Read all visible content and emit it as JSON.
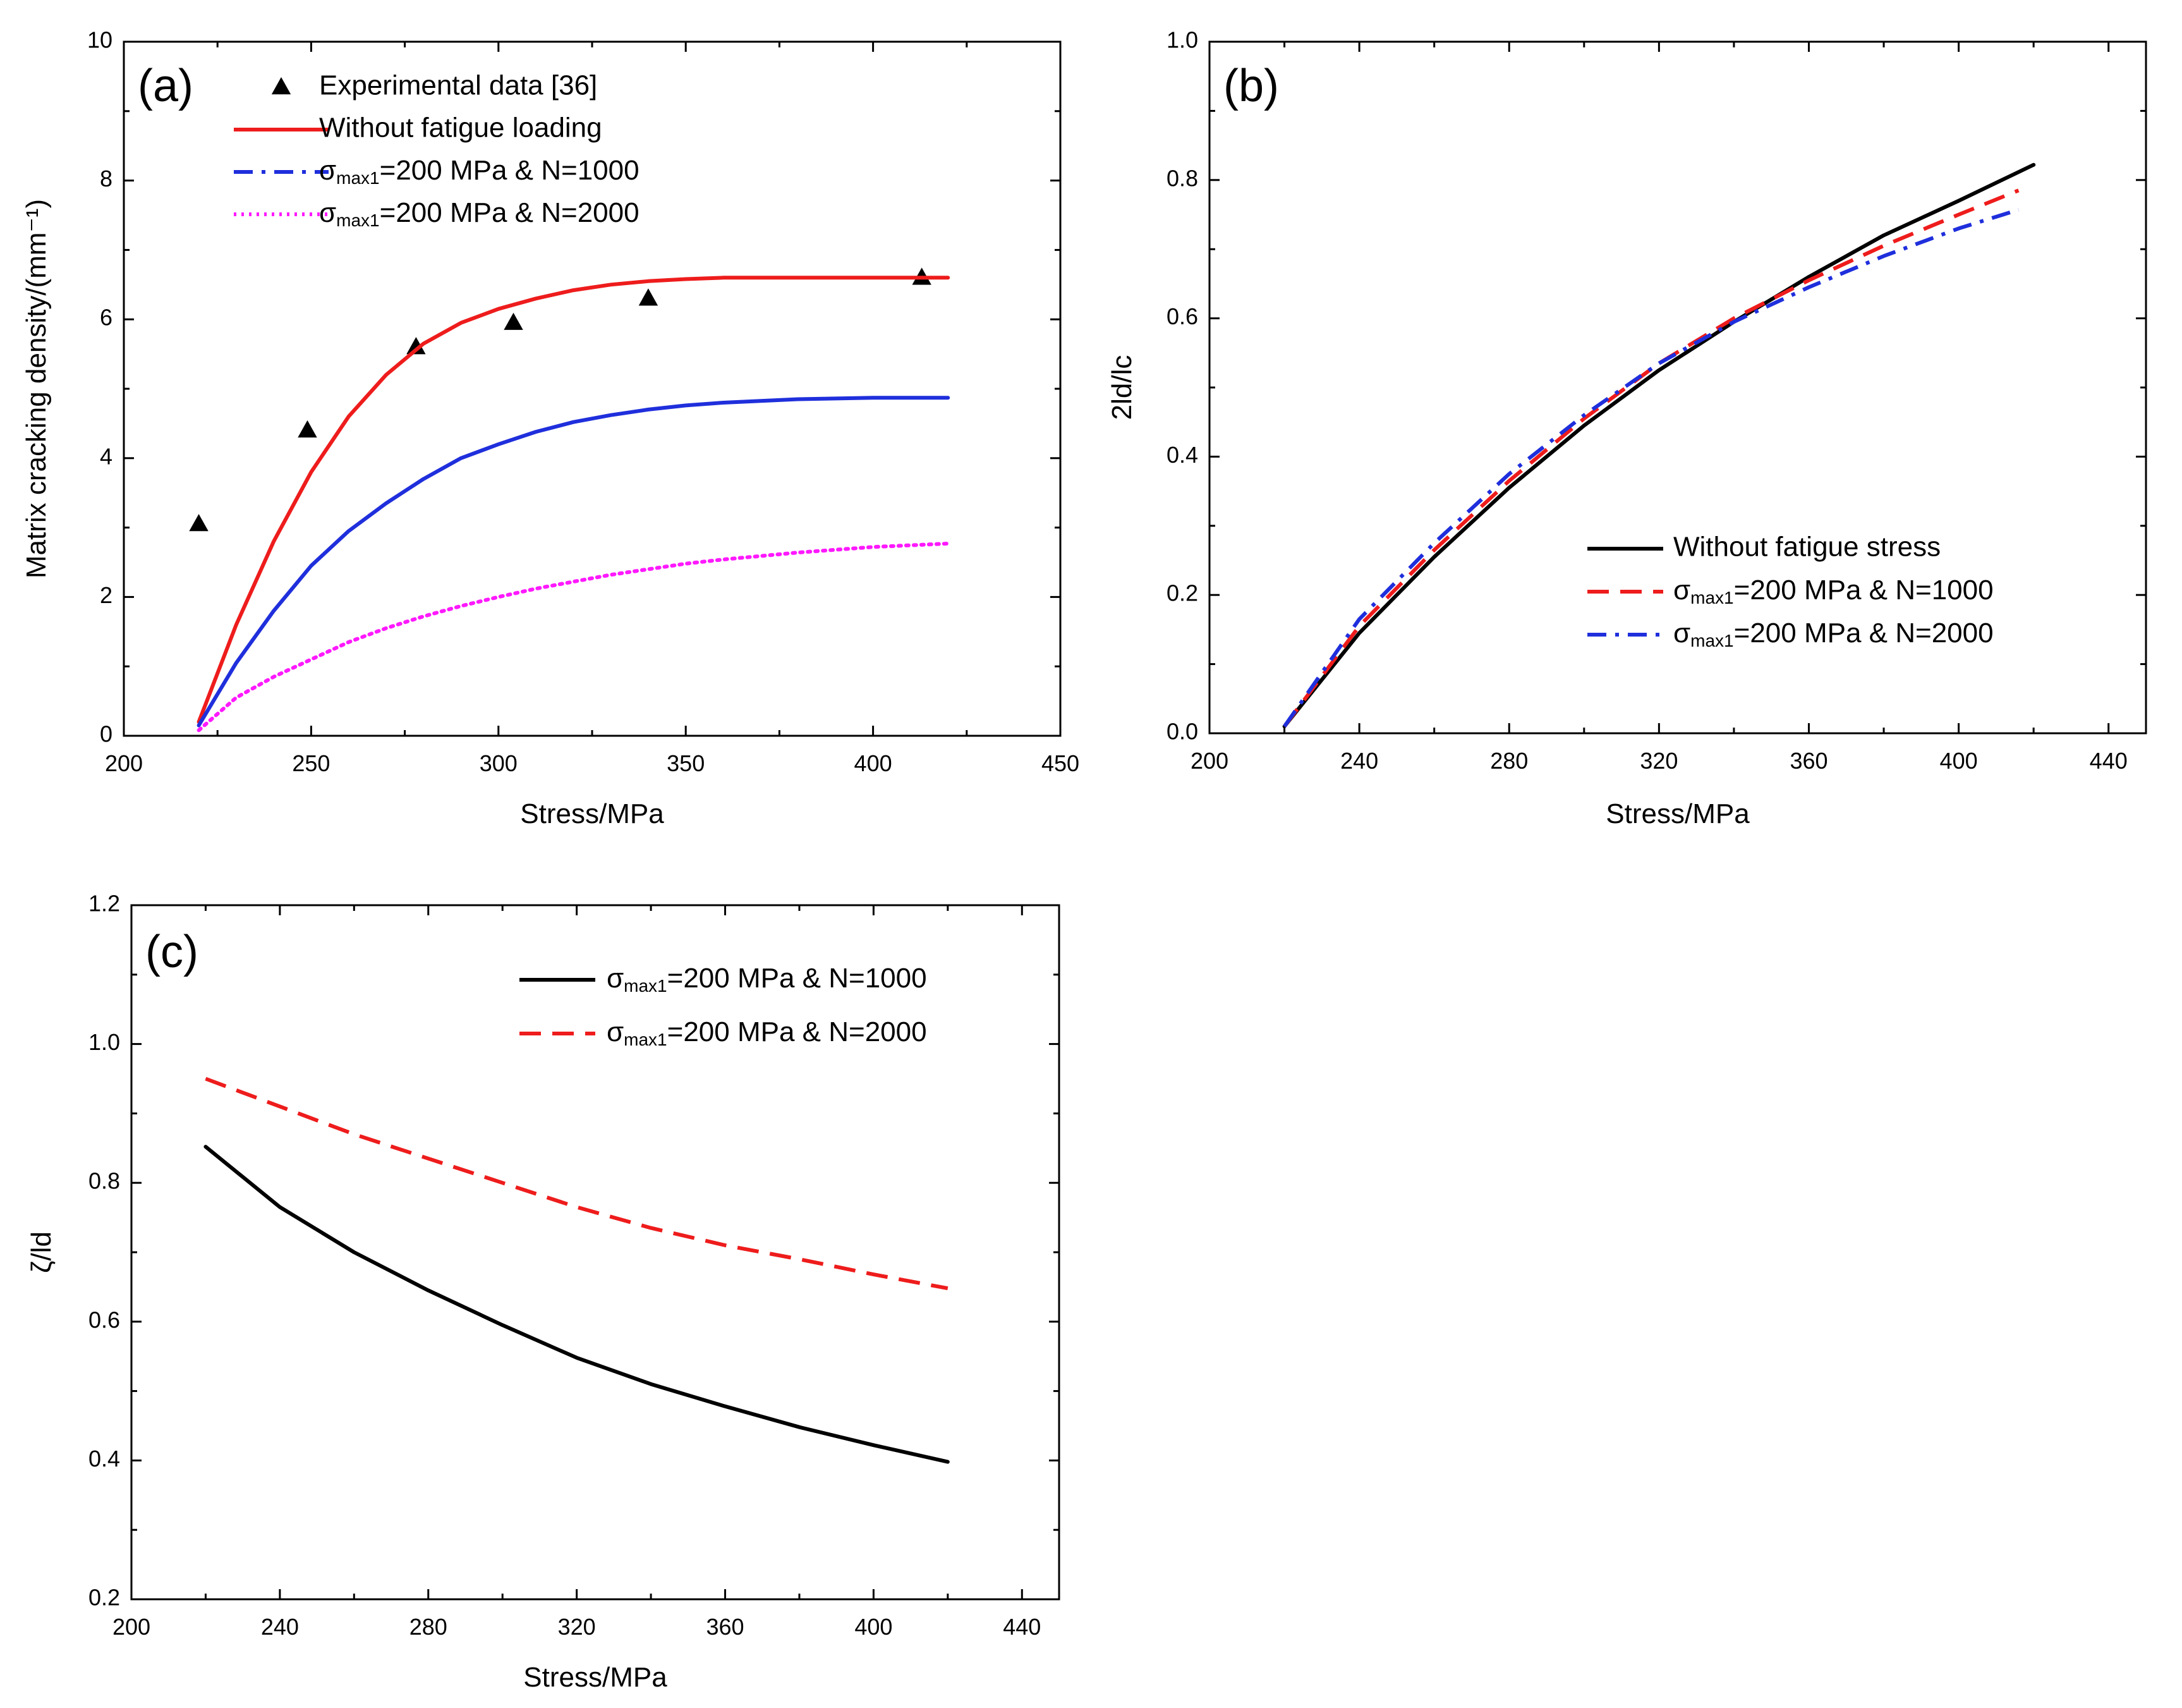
{
  "chart_data": [
    {
      "type": "line",
      "panel_label": "(a)",
      "xlabel": "Stress/MPa",
      "ylabel": "Matrix cracking density/(mm⁻¹)",
      "xlim": [
        200,
        450
      ],
      "ylim": [
        0,
        10
      ],
      "xticks": [
        200,
        250,
        300,
        350,
        400,
        450
      ],
      "yticks": [
        0,
        2,
        4,
        6,
        8,
        10
      ],
      "grid": false,
      "legend_position": "top-left",
      "series": [
        {
          "name": "Experimental data [36]",
          "style": "scatter",
          "marker": "triangle",
          "color": "#000000",
          "x": [
            220,
            249,
            278,
            304,
            340,
            413
          ],
          "y": [
            3.05,
            4.4,
            5.6,
            5.95,
            6.3,
            6.6
          ]
        },
        {
          "name": "Without fatigue loading",
          "style": "solid",
          "color": "#ee1c1c",
          "x": [
            220,
            230,
            240,
            250,
            260,
            270,
            280,
            290,
            300,
            310,
            320,
            330,
            340,
            350,
            360,
            380,
            400,
            420
          ],
          "y": [
            0.2,
            1.6,
            2.8,
            3.8,
            4.6,
            5.2,
            5.65,
            5.95,
            6.15,
            6.3,
            6.42,
            6.5,
            6.55,
            6.58,
            6.6,
            6.6,
            6.6,
            6.6
          ]
        },
        {
          "name": "=200 MPa & N=1000",
          "name_prefix": "σ",
          "name_sub": "max1",
          "style": "solid",
          "legend_style": "dashdot",
          "color": "#1f2fdc",
          "x": [
            220,
            230,
            240,
            250,
            260,
            270,
            280,
            290,
            300,
            310,
            320,
            330,
            340,
            350,
            360,
            380,
            400,
            420
          ],
          "y": [
            0.15,
            1.05,
            1.8,
            2.45,
            2.95,
            3.35,
            3.7,
            4.0,
            4.2,
            4.38,
            4.52,
            4.62,
            4.7,
            4.76,
            4.8,
            4.85,
            4.87,
            4.87
          ]
        },
        {
          "name": "=200 MPa & N=2000",
          "name_prefix": "σ",
          "name_sub": "max1",
          "style": "dotted",
          "color": "#ff19ff",
          "x": [
            220,
            230,
            240,
            250,
            260,
            270,
            280,
            290,
            300,
            310,
            320,
            330,
            340,
            350,
            360,
            380,
            400,
            420
          ],
          "y": [
            0.08,
            0.55,
            0.85,
            1.1,
            1.35,
            1.55,
            1.72,
            1.87,
            2.0,
            2.12,
            2.22,
            2.32,
            2.4,
            2.48,
            2.54,
            2.64,
            2.72,
            2.77
          ]
        }
      ]
    },
    {
      "type": "line",
      "panel_label": "(b)",
      "xlabel": "Stress/MPa",
      "ylabel": "2ld/lc",
      "xlim": [
        200,
        450
      ],
      "ylim": [
        0.0,
        1.0
      ],
      "xticks": [
        200,
        240,
        280,
        320,
        360,
        400,
        440
      ],
      "yticks": [
        0.0,
        0.2,
        0.4,
        0.6,
        0.8,
        1.0
      ],
      "grid": false,
      "legend_position": "bottom-right",
      "series": [
        {
          "name": "Without fatigue stress",
          "style": "solid",
          "color": "#000000",
          "x": [
            220,
            240,
            260,
            280,
            300,
            320,
            340,
            360,
            380,
            400,
            420
          ],
          "y": [
            0.01,
            0.145,
            0.255,
            0.355,
            0.445,
            0.525,
            0.595,
            0.66,
            0.72,
            0.77,
            0.822
          ]
        },
        {
          "name": "=200 MPa & N=1000",
          "name_prefix": "σ",
          "name_sub": "max1",
          "style": "dashed",
          "color": "#ee1c1c",
          "x": [
            220,
            240,
            260,
            280,
            300,
            320,
            340,
            360,
            380,
            400,
            416
          ],
          "y": [
            0.01,
            0.155,
            0.265,
            0.365,
            0.455,
            0.535,
            0.6,
            0.655,
            0.705,
            0.75,
            0.785
          ]
        },
        {
          "name": "=200 MPa & N=2000",
          "name_prefix": "σ",
          "name_sub": "max1",
          "style": "dashdot",
          "color": "#1f2fdc",
          "x": [
            220,
            240,
            260,
            280,
            300,
            320,
            340,
            360,
            380,
            400,
            416
          ],
          "y": [
            0.01,
            0.165,
            0.275,
            0.375,
            0.46,
            0.535,
            0.595,
            0.645,
            0.69,
            0.73,
            0.757
          ]
        }
      ]
    },
    {
      "type": "line",
      "panel_label": "(c)",
      "xlabel": "Stress/MPa",
      "ylabel": "ζ/ld",
      "xlim": [
        200,
        450
      ],
      "ylim": [
        0.2,
        1.2
      ],
      "xticks": [
        200,
        240,
        280,
        320,
        360,
        400,
        440
      ],
      "yticks": [
        0.2,
        0.4,
        0.6,
        0.8,
        1.0,
        1.2
      ],
      "grid": false,
      "legend_position": "top-right",
      "series": [
        {
          "name": "=200 MPa & N=1000",
          "name_prefix": "σ",
          "name_sub": "max1",
          "style": "solid",
          "color": "#000000",
          "x": [
            220,
            240,
            260,
            280,
            300,
            320,
            340,
            360,
            380,
            400,
            420
          ],
          "y": [
            0.852,
            0.765,
            0.7,
            0.645,
            0.595,
            0.548,
            0.51,
            0.478,
            0.448,
            0.422,
            0.398
          ]
        },
        {
          "name": "=200 MPa & N=2000",
          "name_prefix": "σ",
          "name_sub": "max1",
          "style": "dashed",
          "color": "#ee1c1c",
          "x": [
            220,
            240,
            260,
            280,
            300,
            320,
            340,
            360,
            380,
            400,
            420
          ],
          "y": [
            0.95,
            0.91,
            0.87,
            0.835,
            0.8,
            0.765,
            0.735,
            0.71,
            0.69,
            0.668,
            0.648
          ]
        }
      ]
    }
  ]
}
